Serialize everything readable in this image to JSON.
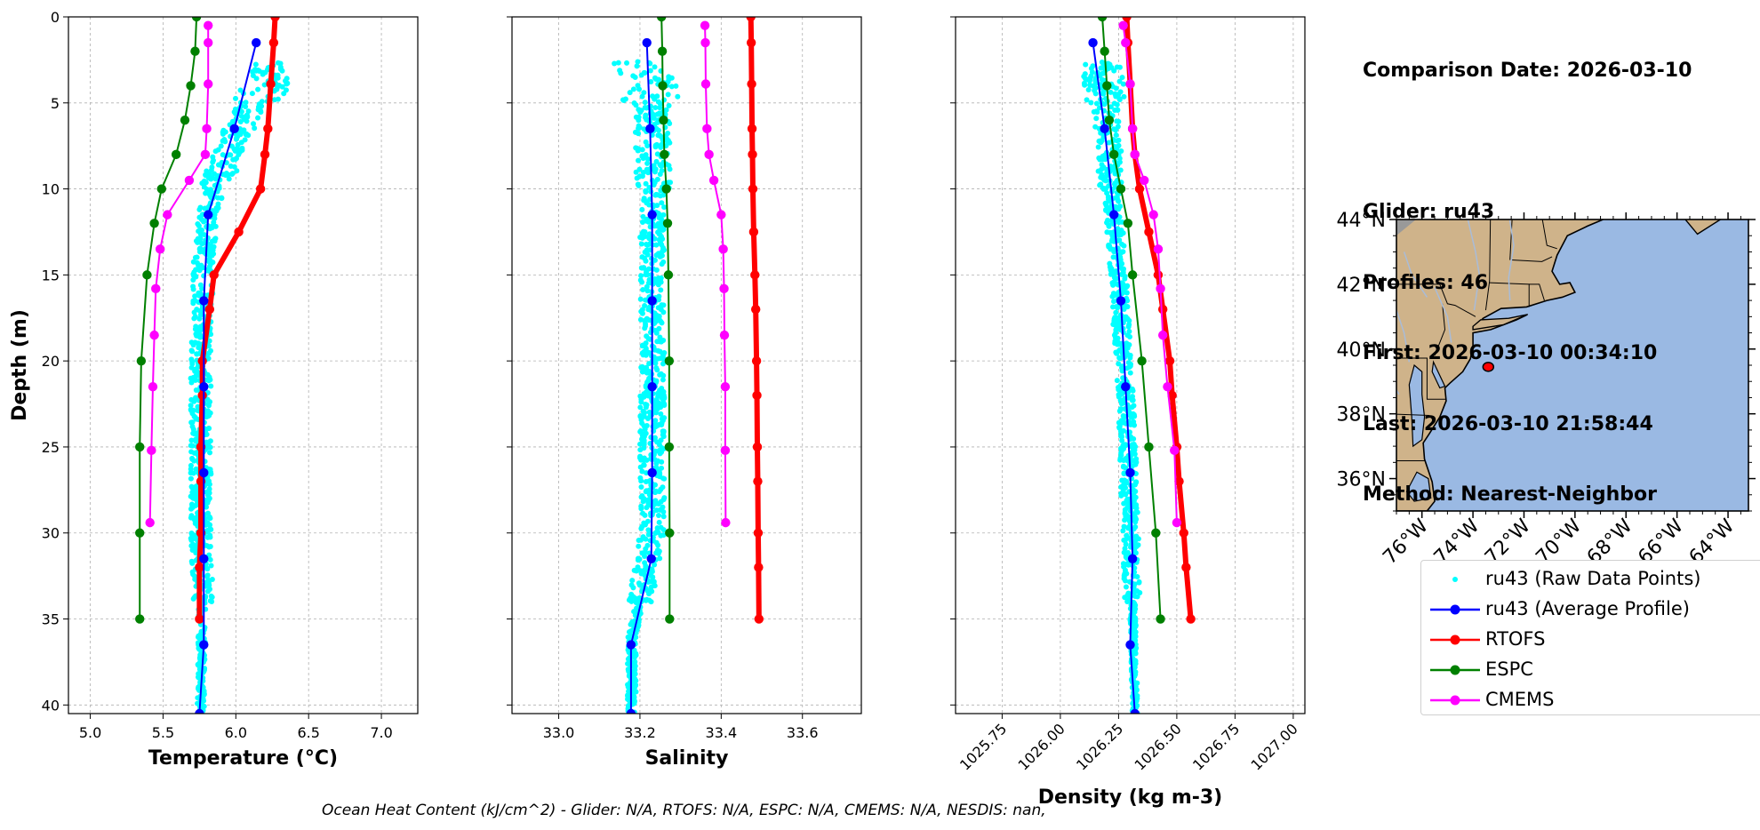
{
  "info": {
    "comparison_date": "Comparison Date: 2026-03-10",
    "blank": "",
    "glider": "Glider: ru43",
    "profiles": "Profiles: 46",
    "first": "First: 2026-03-10 00:34:10",
    "last": "Last: 2026-03-10 21:58:44",
    "method": "Method: Nearest-Neighbor"
  },
  "footer": "Ocean Heat Content (kJ/cm^2) - Glider: N/A,  RTOFS: N/A,  ESPC: N/A,  CMEMS: N/A,  NESDIS: nan,",
  "colors": {
    "raw": "#00FFFF",
    "glider": "#0000FF",
    "rtofs": "#FF0000",
    "espc": "#008000",
    "cmems": "#FF00FF",
    "land": "#CFB38A",
    "ocean": "#9AB9E3"
  },
  "chart_data": [
    {
      "type": "line",
      "xlabel": "Temperature (°C)",
      "ylabel": "Depth (m)",
      "xlim": [
        4.85,
        7.25
      ],
      "ylim": [
        40.5,
        0
      ],
      "xticks": [
        5.0,
        5.5,
        6.0,
        6.5,
        7.0
      ],
      "xtick_labels": [
        "5.0",
        "5.5",
        "6.0",
        "6.5",
        "7.0"
      ],
      "yticks": [
        0,
        5,
        10,
        15,
        20,
        25,
        30,
        35,
        40
      ],
      "ytick_labels": [
        "0",
        "5",
        "10",
        "15",
        "20",
        "25",
        "30",
        "35",
        "40"
      ],
      "grid": true,
      "raw_center": [
        [
          2.8,
          6.3
        ],
        [
          4,
          6.2
        ],
        [
          6,
          6.05
        ],
        [
          8,
          5.95
        ],
        [
          10,
          5.85
        ],
        [
          12,
          5.8
        ],
        [
          14,
          5.78
        ],
        [
          20,
          5.76
        ],
        [
          30,
          5.76
        ],
        [
          33,
          5.77
        ],
        [
          40,
          5.76
        ]
      ],
      "raw_spread": 0.07,
      "raw_depth_range": [
        2.6,
        40.5
      ],
      "series": [
        {
          "name": "RTOFS",
          "key": "rtofs",
          "width": 6,
          "depth": [
            0,
            1.5,
            3.9,
            6.5,
            8,
            10,
            12.5,
            15,
            17,
            20,
            22,
            25,
            27,
            30,
            32,
            35
          ],
          "values": [
            6.27,
            6.26,
            6.24,
            6.22,
            6.2,
            6.17,
            6.02,
            5.85,
            5.82,
            5.77,
            5.77,
            5.76,
            5.76,
            5.76,
            5.75,
            5.75
          ]
        },
        {
          "name": "ESPC",
          "key": "espc",
          "width": 2,
          "depth": [
            0,
            2,
            4,
            6,
            8,
            10,
            12,
            15,
            20,
            25,
            30,
            35
          ],
          "values": [
            5.73,
            5.72,
            5.69,
            5.65,
            5.59,
            5.49,
            5.44,
            5.39,
            5.35,
            5.34,
            5.34,
            5.34
          ]
        },
        {
          "name": "CMEMS",
          "key": "cmems",
          "width": 2,
          "depth": [
            0.5,
            1.5,
            3.9,
            6.5,
            8,
            9.5,
            11.5,
            13.5,
            15.8,
            18.5,
            21.5,
            25.2,
            29.4
          ],
          "values": [
            5.81,
            5.81,
            5.81,
            5.8,
            5.79,
            5.68,
            5.53,
            5.48,
            5.45,
            5.44,
            5.43,
            5.42,
            5.41
          ]
        },
        {
          "name": "ru43 (Average Profile)",
          "key": "glider",
          "width": 2,
          "depth": [
            1.5,
            6.5,
            11.5,
            16.5,
            21.5,
            26.5,
            31.5,
            36.5,
            40.5
          ],
          "values": [
            6.14,
            5.99,
            5.81,
            5.78,
            5.78,
            5.78,
            5.78,
            5.78,
            5.75
          ]
        }
      ]
    },
    {
      "type": "line",
      "xlabel": "Salinity",
      "ylim": [
        40.5,
        0
      ],
      "xlim": [
        32.885,
        33.745
      ],
      "xticks": [
        33.0,
        33.2,
        33.4,
        33.6
      ],
      "xtick_labels": [
        "33.0",
        "33.2",
        "33.4",
        "33.6"
      ],
      "grid": true,
      "raw_center": [
        [
          2.8,
          33.2
        ],
        [
          4,
          33.23
        ],
        [
          10,
          33.23
        ],
        [
          20,
          33.23
        ],
        [
          30,
          33.23
        ],
        [
          34,
          33.2
        ],
        [
          36,
          33.18
        ],
        [
          40,
          33.18
        ]
      ],
      "raw_spread": 0.03,
      "raw_depth_range": [
        2.6,
        40.5
      ],
      "series": [
        {
          "name": "RTOFS",
          "key": "rtofs",
          "width": 6,
          "depth": [
            0,
            1.5,
            3.9,
            6.5,
            8,
            10,
            12.5,
            15,
            17,
            20,
            22,
            25,
            27,
            30,
            32,
            35
          ],
          "values": [
            33.473,
            33.474,
            33.475,
            33.476,
            33.477,
            33.478,
            33.48,
            33.483,
            33.485,
            33.487,
            33.488,
            33.489,
            33.49,
            33.491,
            33.492,
            33.493
          ]
        },
        {
          "name": "ESPC",
          "key": "espc",
          "width": 2,
          "depth": [
            0,
            2,
            4,
            6,
            8,
            10,
            12,
            15,
            20,
            25,
            30,
            35
          ],
          "values": [
            33.253,
            33.255,
            33.256,
            33.258,
            33.26,
            33.265,
            33.268,
            33.27,
            33.272,
            33.272,
            33.273,
            33.273
          ]
        },
        {
          "name": "CMEMS",
          "key": "cmems",
          "width": 2,
          "depth": [
            0.5,
            1.5,
            3.9,
            6.5,
            8,
            9.5,
            11.5,
            13.5,
            15.8,
            18.5,
            21.5,
            25.2,
            29.4
          ],
          "values": [
            33.36,
            33.361,
            33.362,
            33.365,
            33.37,
            33.382,
            33.4,
            33.405,
            33.407,
            33.408,
            33.41,
            33.41,
            33.411
          ]
        },
        {
          "name": "ru43 (Average Profile)",
          "key": "glider",
          "width": 2,
          "depth": [
            1.5,
            6.5,
            11.5,
            16.5,
            21.5,
            26.5,
            31.5,
            36.5,
            40.5
          ],
          "values": [
            33.217,
            33.225,
            33.23,
            33.23,
            33.23,
            33.23,
            33.228,
            33.178,
            33.178
          ]
        }
      ]
    },
    {
      "type": "line",
      "xlabel": "Density (kg m-3)",
      "ylim": [
        40.5,
        0
      ],
      "xlim": [
        1025.55,
        1027.05
      ],
      "xticks": [
        1025.75,
        1026.0,
        1026.25,
        1026.5,
        1026.75,
        1027.0
      ],
      "xtick_labels": [
        "1025.75",
        "1026.00",
        "1026.25",
        "1026.50",
        "1026.75",
        "1027.00"
      ],
      "grid": true,
      "raw_center": [
        [
          2.8,
          1026.18
        ],
        [
          6,
          1026.2
        ],
        [
          10,
          1026.22
        ],
        [
          15,
          1026.25
        ],
        [
          20,
          1026.27
        ],
        [
          25,
          1026.29
        ],
        [
          30,
          1026.3
        ],
        [
          34,
          1026.31
        ],
        [
          40,
          1026.32
        ]
      ],
      "raw_spread": 0.035,
      "raw_depth_range": [
        2.6,
        40.5
      ],
      "series": [
        {
          "name": "RTOFS",
          "key": "rtofs",
          "width": 6,
          "depth": [
            0,
            1.5,
            3.9,
            6.5,
            8,
            10,
            12.5,
            15,
            17,
            20,
            22,
            25,
            27,
            30,
            32,
            35
          ],
          "values": [
            1026.285,
            1026.29,
            1026.3,
            1026.31,
            1026.32,
            1026.34,
            1026.38,
            1026.42,
            1026.44,
            1026.47,
            1026.48,
            1026.5,
            1026.51,
            1026.53,
            1026.54,
            1026.56
          ]
        },
        {
          "name": "ESPC",
          "key": "espc",
          "width": 2,
          "depth": [
            0,
            2,
            4,
            6,
            8,
            10,
            12,
            15,
            20,
            25,
            30,
            35
          ],
          "values": [
            1026.18,
            1026.19,
            1026.2,
            1026.21,
            1026.23,
            1026.26,
            1026.29,
            1026.31,
            1026.35,
            1026.38,
            1026.41,
            1026.43
          ]
        },
        {
          "name": "CMEMS",
          "key": "cmems",
          "width": 2,
          "depth": [
            0.5,
            1.5,
            3.9,
            6.5,
            8,
            9.5,
            11.5,
            13.5,
            15.8,
            18.5,
            21.5,
            25.2,
            29.4
          ],
          "values": [
            1026.27,
            1026.28,
            1026.3,
            1026.31,
            1026.32,
            1026.36,
            1026.4,
            1026.42,
            1026.43,
            1026.44,
            1026.46,
            1026.49,
            1026.5
          ]
        },
        {
          "name": "ru43 (Average Profile)",
          "key": "glider",
          "width": 2,
          "depth": [
            1.5,
            6.5,
            11.5,
            16.5,
            21.5,
            26.5,
            31.5,
            36.5,
            40.5
          ],
          "values": [
            1026.14,
            1026.19,
            1026.23,
            1026.26,
            1026.28,
            1026.3,
            1026.31,
            1026.3,
            1026.32
          ]
        }
      ]
    }
  ],
  "map": {
    "lat_labels": [
      "44°N",
      "42°N",
      "40°N",
      "38°N",
      "36°N"
    ],
    "lat_values": [
      44,
      42,
      40,
      38,
      36
    ],
    "lon_labels": [
      "76°W",
      "74°W",
      "72°W",
      "70°W",
      "68°W",
      "66°W",
      "64°W"
    ],
    "lon_values": [
      -76,
      -74,
      -72,
      -70,
      -68,
      -66,
      -64
    ],
    "extent": {
      "lon": [
        -77,
        -63.2
      ],
      "lat": [
        35,
        44
      ]
    },
    "glider_position": {
      "lon": -73.4,
      "lat": 39.45
    }
  },
  "legend": [
    {
      "label": "ru43 (Raw Data Points)",
      "key": "raw",
      "style": "dot"
    },
    {
      "label": "ru43 (Average Profile)",
      "key": "glider",
      "style": "line-marker"
    },
    {
      "label": "RTOFS",
      "key": "rtofs",
      "style": "line-marker"
    },
    {
      "label": "ESPC",
      "key": "espc",
      "style": "line-marker"
    },
    {
      "label": "CMEMS",
      "key": "cmems",
      "style": "line-marker"
    }
  ]
}
